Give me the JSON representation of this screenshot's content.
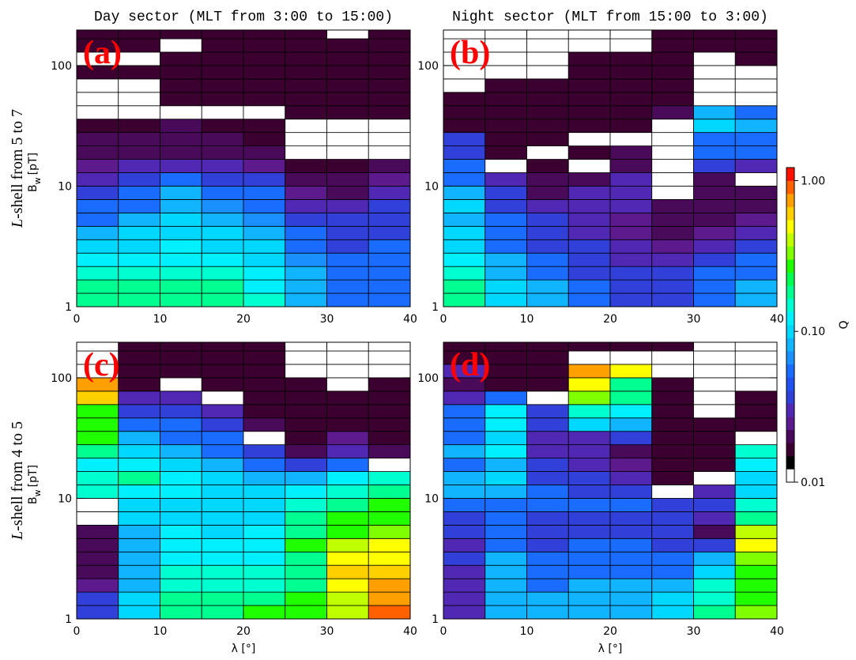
{
  "chart_data": [
    {
      "type": "heatmap",
      "title": "Day sector (MLT from 3:00 to 15:00)",
      "panel_label": "(a)",
      "side_label": [
        "L",
        "-shell from 5 to 7"
      ],
      "ylabel": [
        "B",
        "w",
        "[pT]"
      ],
      "xlim": [
        0,
        40
      ],
      "ylim": [
        1,
        197
      ],
      "xticks": [
        0,
        10,
        20,
        30,
        40
      ],
      "yticks": [
        1,
        10,
        100
      ],
      "log_y": true,
      "xbins": [
        0,
        5,
        10,
        15,
        20,
        25,
        30,
        35,
        40
      ],
      "ybins": [
        1,
        1.292,
        1.668,
        2.154,
        2.783,
        3.594,
        4.642,
        5.995,
        7.743,
        10,
        12.92,
        16.68,
        21.54,
        27.83,
        35.94,
        46.42,
        59.95,
        77.43,
        100,
        129.2,
        166.8,
        215.4
      ],
      "values": [
        [
          0.2,
          0.2,
          0.2,
          0.2,
          0.15,
          0.08,
          0.05,
          0.06
        ],
        [
          0.2,
          0.2,
          0.18,
          0.2,
          0.12,
          0.08,
          0.05,
          0.06
        ],
        [
          0.15,
          0.15,
          0.15,
          0.15,
          0.12,
          0.08,
          0.05,
          0.05
        ],
        [
          0.12,
          0.12,
          0.12,
          0.12,
          0.1,
          0.07,
          0.05,
          0.05
        ],
        [
          0.1,
          0.1,
          0.12,
          0.1,
          0.1,
          0.06,
          0.04,
          0.05
        ],
        [
          0.08,
          0.1,
          0.1,
          0.1,
          0.08,
          0.05,
          0.04,
          0.04
        ],
        [
          0.06,
          0.08,
          0.1,
          0.08,
          0.07,
          0.04,
          0.035,
          0.04
        ],
        [
          0.05,
          0.06,
          0.08,
          0.07,
          0.06,
          0.03,
          0.03,
          0.035
        ],
        [
          0.04,
          0.05,
          0.08,
          0.06,
          0.05,
          0.025,
          0.02,
          0.03
        ],
        [
          0.03,
          0.035,
          0.05,
          0.04,
          0.035,
          0.019,
          0.019,
          0.025
        ],
        [
          0.025,
          0.03,
          0.03,
          0.03,
          0.025,
          0.016,
          0.016,
          0.02
        ],
        [
          0.02,
          0.022,
          0.022,
          0.022,
          0.02,
          null,
          null,
          null
        ],
        [
          0.019,
          0.02,
          0.02,
          0.019,
          0.016,
          null,
          null,
          null
        ],
        [
          0.016,
          0.016,
          0.022,
          0.016,
          0.016,
          null,
          null,
          null
        ],
        [
          null,
          null,
          null,
          null,
          null,
          0.016,
          0.016,
          0.016
        ],
        [
          null,
          null,
          0.016,
          0.016,
          0.016,
          0.016,
          0.016,
          0.016
        ],
        [
          null,
          null,
          0.016,
          0.016,
          0.016,
          0.016,
          0.016,
          0.016
        ],
        [
          0.016,
          0.016,
          0.016,
          0.016,
          0.016,
          0.016,
          0.016,
          0.016
        ],
        [
          null,
          null,
          0.016,
          0.016,
          0.016,
          0.016,
          0.016,
          0.016
        ],
        [
          0.016,
          0.016,
          null,
          0.016,
          0.016,
          0.016,
          0.016,
          0.016
        ],
        [
          0.016,
          0.016,
          0.016,
          0.016,
          0.016,
          0.016,
          null,
          0.016
        ]
      ]
    },
    {
      "type": "heatmap",
      "title": "Night sector (MLT from 15:00 to 3:00)",
      "panel_label": "(b)",
      "xlim": [
        0,
        40
      ],
      "ylim": [
        1,
        197
      ],
      "xticks": [
        0,
        10,
        20,
        30,
        40
      ],
      "yticks": [
        1,
        10,
        100
      ],
      "log_y": true,
      "xbins": [
        0,
        5,
        10,
        15,
        20,
        25,
        30,
        35,
        40
      ],
      "ybins": [
        1,
        1.292,
        1.668,
        2.154,
        2.783,
        3.594,
        4.642,
        5.995,
        7.743,
        10,
        12.92,
        16.68,
        21.54,
        27.83,
        35.94,
        46.42,
        59.95,
        77.43,
        100,
        129.2,
        166.8,
        215.4
      ],
      "values": [
        [
          0.2,
          0.1,
          0.08,
          0.05,
          0.04,
          0.04,
          0.06,
          0.08
        ],
        [
          0.2,
          0.1,
          0.08,
          0.05,
          0.04,
          0.04,
          0.06,
          0.08
        ],
        [
          0.15,
          0.08,
          0.06,
          0.04,
          0.035,
          0.035,
          0.05,
          0.06
        ],
        [
          0.12,
          0.08,
          0.05,
          0.04,
          0.03,
          0.03,
          0.04,
          0.05
        ],
        [
          0.1,
          0.06,
          0.04,
          0.035,
          0.03,
          0.025,
          0.03,
          0.04
        ],
        [
          0.1,
          0.05,
          0.04,
          0.03,
          0.025,
          0.022,
          0.025,
          0.03
        ],
        [
          0.08,
          0.05,
          0.035,
          0.03,
          0.025,
          0.022,
          0.022,
          0.025
        ],
        [
          0.1,
          0.04,
          0.03,
          0.03,
          0.03,
          0.019,
          0.022,
          0.022
        ],
        [
          0.08,
          0.04,
          0.022,
          0.03,
          0.03,
          0.012,
          0.019,
          0.019
        ],
        [
          0.06,
          0.03,
          0.019,
          0.022,
          0.03,
          0.012,
          0.019,
          null
        ],
        [
          0.05,
          null,
          0.016,
          0.012,
          0.022,
          null,
          0.04,
          0.03
        ],
        [
          0.04,
          0.016,
          null,
          0.016,
          0.019,
          null,
          0.05,
          0.05
        ],
        [
          0.035,
          0.016,
          0.016,
          null,
          null,
          null,
          0.06,
          0.06
        ],
        [
          0.016,
          0.016,
          0.016,
          0.016,
          0.016,
          null,
          0.1,
          0.08
        ],
        [
          0.016,
          0.016,
          0.016,
          0.016,
          0.016,
          0.019,
          0.08,
          0.06
        ],
        [
          0.016,
          0.016,
          0.016,
          0.016,
          0.016,
          0.016,
          null,
          null
        ],
        [
          null,
          0.016,
          0.016,
          0.016,
          0.016,
          0.016,
          null,
          null
        ],
        [
          null,
          null,
          null,
          0.016,
          0.016,
          0.016,
          null,
          null
        ],
        [
          null,
          null,
          null,
          0.016,
          0.016,
          0.016,
          null,
          0.016
        ],
        [
          null,
          null,
          null,
          null,
          null,
          0.016,
          0.016,
          0.016
        ],
        [
          null,
          null,
          null,
          null,
          null,
          0.016,
          0.016,
          0.016
        ]
      ]
    },
    {
      "type": "heatmap",
      "panel_label": "(c)",
      "xlabel": "λ [°]",
      "side_label": [
        "L",
        "-shell from 4 to 5"
      ],
      "ylabel": [
        "B",
        "w",
        "[pT]"
      ],
      "xlim": [
        0,
        40
      ],
      "ylim": [
        1,
        197
      ],
      "xticks": [
        0,
        10,
        20,
        30,
        40
      ],
      "yticks": [
        1,
        10,
        100
      ],
      "log_y": true,
      "xbins": [
        0,
        5,
        10,
        15,
        20,
        25,
        30,
        35,
        40
      ],
      "ybins": [
        1,
        1.292,
        1.668,
        2.154,
        2.783,
        3.594,
        4.642,
        5.995,
        7.743,
        10,
        12.92,
        16.68,
        21.54,
        27.83,
        35.94,
        46.42,
        59.95,
        77.43,
        100,
        129.2,
        166.8,
        215.4
      ],
      "values": [
        [
          0.04,
          0.1,
          0.2,
          0.2,
          0.25,
          0.3,
          0.4,
          0.9
        ],
        [
          0.035,
          0.1,
          0.2,
          0.2,
          0.2,
          0.25,
          0.4,
          0.8
        ],
        [
          0.025,
          0.08,
          0.15,
          0.15,
          0.15,
          0.2,
          0.5,
          0.7
        ],
        [
          0.022,
          0.08,
          0.15,
          0.15,
          0.15,
          0.2,
          0.6,
          0.6
        ],
        [
          0.022,
          0.08,
          0.12,
          0.12,
          0.12,
          0.2,
          0.5,
          0.5
        ],
        [
          0.022,
          0.08,
          0.12,
          0.12,
          0.12,
          0.25,
          0.4,
          0.45
        ],
        [
          0.022,
          0.08,
          0.12,
          0.1,
          0.12,
          0.2,
          0.3,
          0.35
        ],
        [
          0.012,
          0.1,
          0.1,
          0.1,
          0.1,
          0.2,
          0.25,
          0.3
        ],
        [
          null,
          0.1,
          0.1,
          0.1,
          0.1,
          0.15,
          0.2,
          0.25
        ],
        [
          0.15,
          0.12,
          0.12,
          0.1,
          0.1,
          0.12,
          0.15,
          0.2
        ],
        [
          0.15,
          0.2,
          0.12,
          0.1,
          0.08,
          0.08,
          0.12,
          0.15
        ],
        [
          0.12,
          0.12,
          0.1,
          0.08,
          0.05,
          0.04,
          0.06,
          null
        ],
        [
          0.2,
          0.1,
          0.08,
          0.06,
          0.035,
          0.022,
          0.03,
          0.022
        ],
        [
          0.25,
          0.08,
          0.06,
          0.05,
          null,
          0.016,
          0.025,
          0.016
        ],
        [
          0.3,
          0.05,
          0.05,
          0.04,
          0.022,
          0.016,
          0.016,
          0.016
        ],
        [
          0.3,
          0.04,
          0.035,
          0.03,
          0.016,
          0.016,
          0.016,
          0.016
        ],
        [
          0.6,
          0.03,
          0.03,
          null,
          0.016,
          0.016,
          0.016,
          0.016
        ],
        [
          0.7,
          0.016,
          null,
          0.016,
          0.016,
          0.016,
          null,
          0.016
        ],
        [
          null,
          0.016,
          0.016,
          0.016,
          0.016,
          null,
          null,
          null
        ],
        [
          null,
          0.016,
          0.016,
          0.016,
          0.016,
          null,
          null,
          null
        ],
        [
          null,
          0.016,
          0.016,
          0.016,
          0.016,
          null,
          null,
          null
        ]
      ]
    },
    {
      "type": "heatmap",
      "panel_label": "(d)",
      "xlabel": "λ [°]",
      "xlim": [
        0,
        40
      ],
      "ylim": [
        1,
        197
      ],
      "xticks": [
        0,
        10,
        20,
        30,
        40
      ],
      "yticks": [
        1,
        10,
        100
      ],
      "log_y": true,
      "xbins": [
        0,
        5,
        10,
        15,
        20,
        25,
        30,
        35,
        40
      ],
      "ybins": [
        1,
        1.292,
        1.668,
        2.154,
        2.783,
        3.594,
        4.642,
        5.995,
        7.743,
        10,
        12.92,
        16.68,
        21.54,
        27.83,
        35.94,
        46.42,
        59.95,
        77.43,
        100,
        129.2,
        166.8,
        215.4
      ],
      "values": [
        [
          0.03,
          0.08,
          0.08,
          0.08,
          0.08,
          0.1,
          0.2,
          0.35
        ],
        [
          0.03,
          0.08,
          0.08,
          0.08,
          0.08,
          0.1,
          0.15,
          0.3
        ],
        [
          0.03,
          0.08,
          0.06,
          0.08,
          0.08,
          0.08,
          0.15,
          0.3
        ],
        [
          0.03,
          0.08,
          0.06,
          0.06,
          0.06,
          0.06,
          0.1,
          0.25
        ],
        [
          0.035,
          0.08,
          0.05,
          0.06,
          0.05,
          0.05,
          0.08,
          0.35
        ],
        [
          0.03,
          0.06,
          0.04,
          0.05,
          0.05,
          0.04,
          0.04,
          0.5
        ],
        [
          0.035,
          0.05,
          0.035,
          0.04,
          0.04,
          0.035,
          0.022,
          0.4
        ],
        [
          0.04,
          0.06,
          0.04,
          0.04,
          0.04,
          0.04,
          0.03,
          0.2
        ],
        [
          0.06,
          0.05,
          0.05,
          0.05,
          0.05,
          0.04,
          0.035,
          0.15
        ],
        [
          0.08,
          0.08,
          0.05,
          0.04,
          0.04,
          null,
          0.03,
          0.1
        ],
        [
          0.08,
          0.1,
          0.04,
          0.04,
          0.03,
          0.016,
          null,
          0.1
        ],
        [
          0.06,
          0.08,
          0.035,
          0.03,
          0.025,
          0.016,
          0.016,
          0.12
        ],
        [
          0.08,
          0.12,
          0.03,
          0.03,
          0.022,
          0.016,
          0.016,
          0.15
        ],
        [
          0.06,
          0.1,
          0.03,
          0.03,
          0.035,
          0.016,
          0.016,
          null
        ],
        [
          0.05,
          0.12,
          0.04,
          0.1,
          0.08,
          0.016,
          0.016,
          0.016
        ],
        [
          0.05,
          0.12,
          0.035,
          0.15,
          0.12,
          0.016,
          null,
          0.016
        ],
        [
          0.03,
          0.05,
          null,
          0.35,
          0.2,
          0.016,
          null,
          0.016
        ],
        [
          0.022,
          0.016,
          0.016,
          0.5,
          0.2,
          0.016,
          null,
          null
        ],
        [
          0.03,
          0.016,
          0.016,
          0.8,
          0.5,
          null,
          null,
          null
        ],
        [
          0.016,
          0.016,
          0.016,
          null,
          null,
          null,
          null,
          null
        ],
        [
          0.016,
          0.016,
          0.016,
          0.016,
          0.016,
          0.016,
          null,
          null
        ]
      ]
    }
  ],
  "colorbar": {
    "label": "Q",
    "clim": [
      0.01,
      1.22
    ],
    "ticks": [
      0.01,
      {
        "value": 0.1,
        "label": "0.10"
      },
      {
        "value": 1,
        "label": "1.00"
      }
    ],
    "colors": [
      "#ffffff",
      "#000000",
      "#3c0030",
      "#4a0a5a",
      "#5c1a8c",
      "#5028b4",
      "#3040d8",
      "#2050f0",
      "#1a6cff",
      "#1a90ff",
      "#10b4ff",
      "#00d8ff",
      "#00f0ff",
      "#00ffd0",
      "#00ff90",
      "#00ff50",
      "#20ff00",
      "#80ff00",
      "#c0ff00",
      "#ffff00",
      "#ffd000",
      "#ffa000",
      "#ff6000",
      "#ff1000"
    ]
  }
}
